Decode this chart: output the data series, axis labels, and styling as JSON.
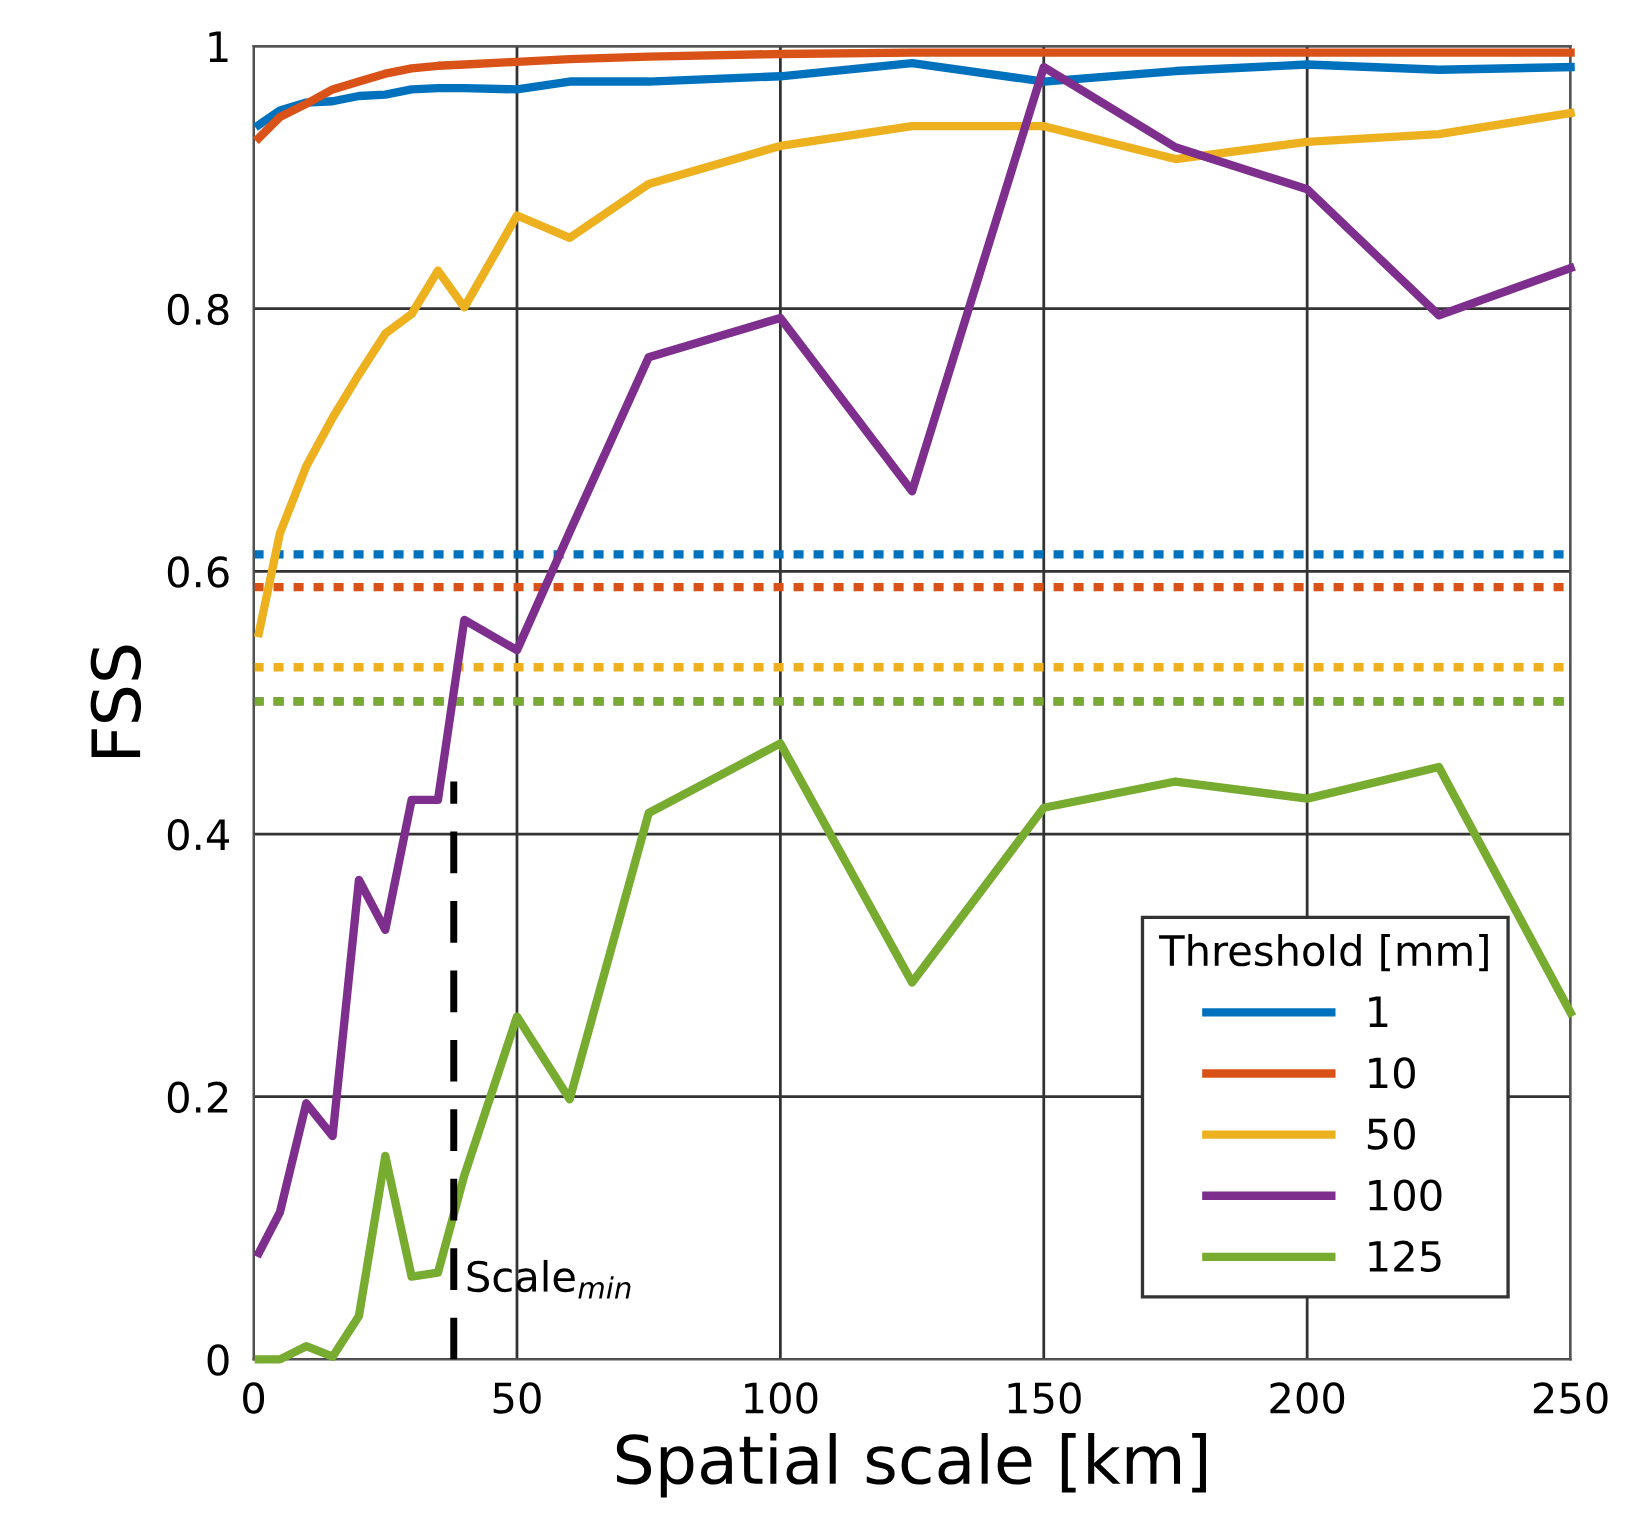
{
  "chart_data": {
    "type": "line",
    "xlabel": "Spatial scale [km]",
    "ylabel": "FSS",
    "legend_title": "Threshold [mm]",
    "x": [
      1,
      5,
      10,
      15,
      20,
      25,
      30,
      35,
      40,
      50,
      60,
      75,
      100,
      125,
      150,
      175,
      200,
      225,
      250
    ],
    "series": [
      {
        "name": "1",
        "color": "#0072bd",
        "values": [
          0.94,
          0.951,
          0.957,
          0.958,
          0.962,
          0.963,
          0.967,
          0.968,
          0.968,
          0.967,
          0.973,
          0.973,
          0.977,
          0.987,
          0.973,
          0.981,
          0.986,
          0.982,
          0.984
        ]
      },
      {
        "name": "10",
        "color": "#d95319",
        "values": [
          0.93,
          0.946,
          0.956,
          0.967,
          0.973,
          0.979,
          0.983,
          0.985,
          0.986,
          0.988,
          0.99,
          0.992,
          0.994,
          0.995,
          0.995,
          0.995,
          0.995,
          0.995,
          0.995
        ]
      },
      {
        "name": "50",
        "color": "#edb120",
        "values": [
          0.553,
          0.629,
          0.68,
          0.717,
          0.75,
          0.781,
          0.796,
          0.829,
          0.801,
          0.871,
          0.854,
          0.895,
          0.924,
          0.939,
          0.939,
          0.914,
          0.927,
          0.933,
          0.949
        ]
      },
      {
        "name": "100",
        "color": "#7e2f8e",
        "values": [
          0.081,
          0.112,
          0.195,
          0.17,
          0.365,
          0.327,
          0.426,
          0.426,
          0.563,
          0.54,
          0.63,
          0.763,
          0.793,
          0.661,
          0.984,
          0.923,
          0.891,
          0.795,
          0.831
        ]
      },
      {
        "name": "125",
        "color": "#77ac30",
        "values": [
          0.0,
          0.0,
          0.01,
          0.002,
          0.033,
          0.155,
          0.063,
          0.066,
          0.14,
          0.261,
          0.198,
          0.416,
          0.469,
          0.287,
          0.42,
          0.44,
          0.427,
          0.451,
          0.264
        ]
      },
      {
        "color": "#000000",
        "x": [
          38,
          38
        ],
        "values": [
          0,
          0.44
        ],
        "line_style": "dashed"
      }
    ],
    "ref_lines": [
      {
        "axis": "y",
        "value": 0.613,
        "color": "#0072bd",
        "line_style": "dotted"
      },
      {
        "axis": "y",
        "value": 0.588,
        "color": "#d95319",
        "line_style": "dotted"
      },
      {
        "axis": "y",
        "value": 0.527,
        "color": "#edb120",
        "line_style": "dotted"
      },
      {
        "axis": "y",
        "value": 0.501,
        "color": "#7e2f8e",
        "line_style": "dotted"
      },
      {
        "axis": "y",
        "value": 0.501,
        "color": "#77ac30",
        "line_style": "dotted"
      }
    ],
    "annotations": [
      {
        "text": "Scale$_{min}$",
        "x": 38,
        "y": 0.045
      }
    ],
    "xlim": [
      0,
      250
    ],
    "ylim": [
      0,
      1
    ],
    "xticks": [
      0,
      50,
      100,
      150,
      200,
      250
    ],
    "yticks": [
      0,
      0.2,
      0.4,
      0.6,
      0.8,
      1
    ],
    "grid": true,
    "legend": "bottom right",
    "line_style": "solid",
    "marker": "none"
  }
}
